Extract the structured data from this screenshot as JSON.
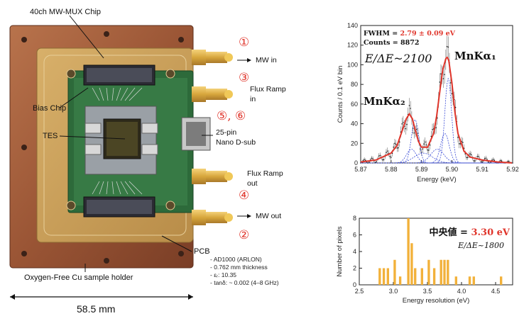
{
  "figure_labels": {
    "chip": "40ch MW-MUX Chip",
    "bias_chip": "Bias Chip",
    "tes": "TES",
    "pcb": "PCB",
    "sample_holder": "Oxygen-Free Cu sample holder",
    "dimension": "58.5 mm",
    "mw_in": "MW in",
    "flux_ramp_in": "Flux Ramp\nin",
    "dsub": "25-pin\nNano D-sub",
    "flux_ramp_out": "Flux Ramp\nout",
    "mw_out": "MW out",
    "circled_1": "①",
    "circled_3": "③",
    "circled_56": "⑤, ⑥",
    "circled_4": "④",
    "circled_2": "②",
    "pcb_specs": [
      "AD1000 (ARLON)",
      "0.762 mm thickness",
      "εᵣ: 10.35",
      "tanδ: ~ 0.002 (4–8 GHz)"
    ]
  },
  "chart_data": [
    {
      "type": "line",
      "xlabel": "Energy (keV)",
      "ylabel": "Counts / 0.1 eV bin",
      "xlim": [
        5.87,
        5.92
      ],
      "ylim": [
        0,
        140
      ],
      "xticks": [
        "5.87",
        "5.88",
        "5.89",
        "5.90",
        "5.91",
        "5.92"
      ],
      "yticks": [
        "0",
        "20",
        "40",
        "60",
        "80",
        "100",
        "120",
        "140"
      ],
      "annotations": {
        "fwhm_label": "FWHM = ",
        "fwhm_value": "2.79 ± 0.09 eV",
        "counts": "Counts = 8872",
        "resolving_power": "E/ΔE~2100",
        "peak1": "MnKα₁",
        "peak2": "MnKα₂"
      },
      "series": [
        {
          "x": [
            5.87,
            5.875,
            5.88,
            5.882,
            5.884,
            5.885,
            5.886,
            5.887,
            5.888,
            5.889,
            5.89,
            5.892,
            5.894,
            5.895,
            5.896,
            5.897,
            5.898,
            5.8985,
            5.899,
            5.9,
            5.901,
            5.902,
            5.904,
            5.906,
            5.91,
            5.915,
            5.92
          ],
          "y": [
            1,
            3,
            10,
            18,
            36,
            45,
            50,
            45,
            33,
            22,
            16,
            16,
            30,
            48,
            72,
            95,
            106,
            108,
            104,
            82,
            52,
            30,
            12,
            6,
            3,
            1,
            0
          ]
        }
      ]
    },
    {
      "type": "bar",
      "xlabel": "Energy resolution  (eV)",
      "ylabel": "Number of pixels",
      "xlim": [
        2.5,
        4.75
      ],
      "ylim": [
        0,
        8
      ],
      "xticks": [
        "2.5",
        "3.0",
        "3.5",
        "4.0",
        "4.5"
      ],
      "yticks": [
        "0",
        "2",
        "4",
        "6",
        "8"
      ],
      "annotations": {
        "median_label": "中央値 = ",
        "median_value": "3.30 eV",
        "resolving_power": "E/ΔE~1800"
      },
      "x": [
        2.8,
        2.86,
        2.92,
        3.02,
        3.1,
        3.22,
        3.27,
        3.32,
        3.42,
        3.52,
        3.6,
        3.7,
        3.75,
        3.8,
        3.92,
        4.12,
        4.18,
        4.58
      ],
      "values": [
        2,
        2,
        2,
        3,
        1,
        8,
        5,
        2,
        2,
        3,
        2,
        3,
        3,
        3,
        1,
        1,
        1,
        1
      ]
    }
  ]
}
